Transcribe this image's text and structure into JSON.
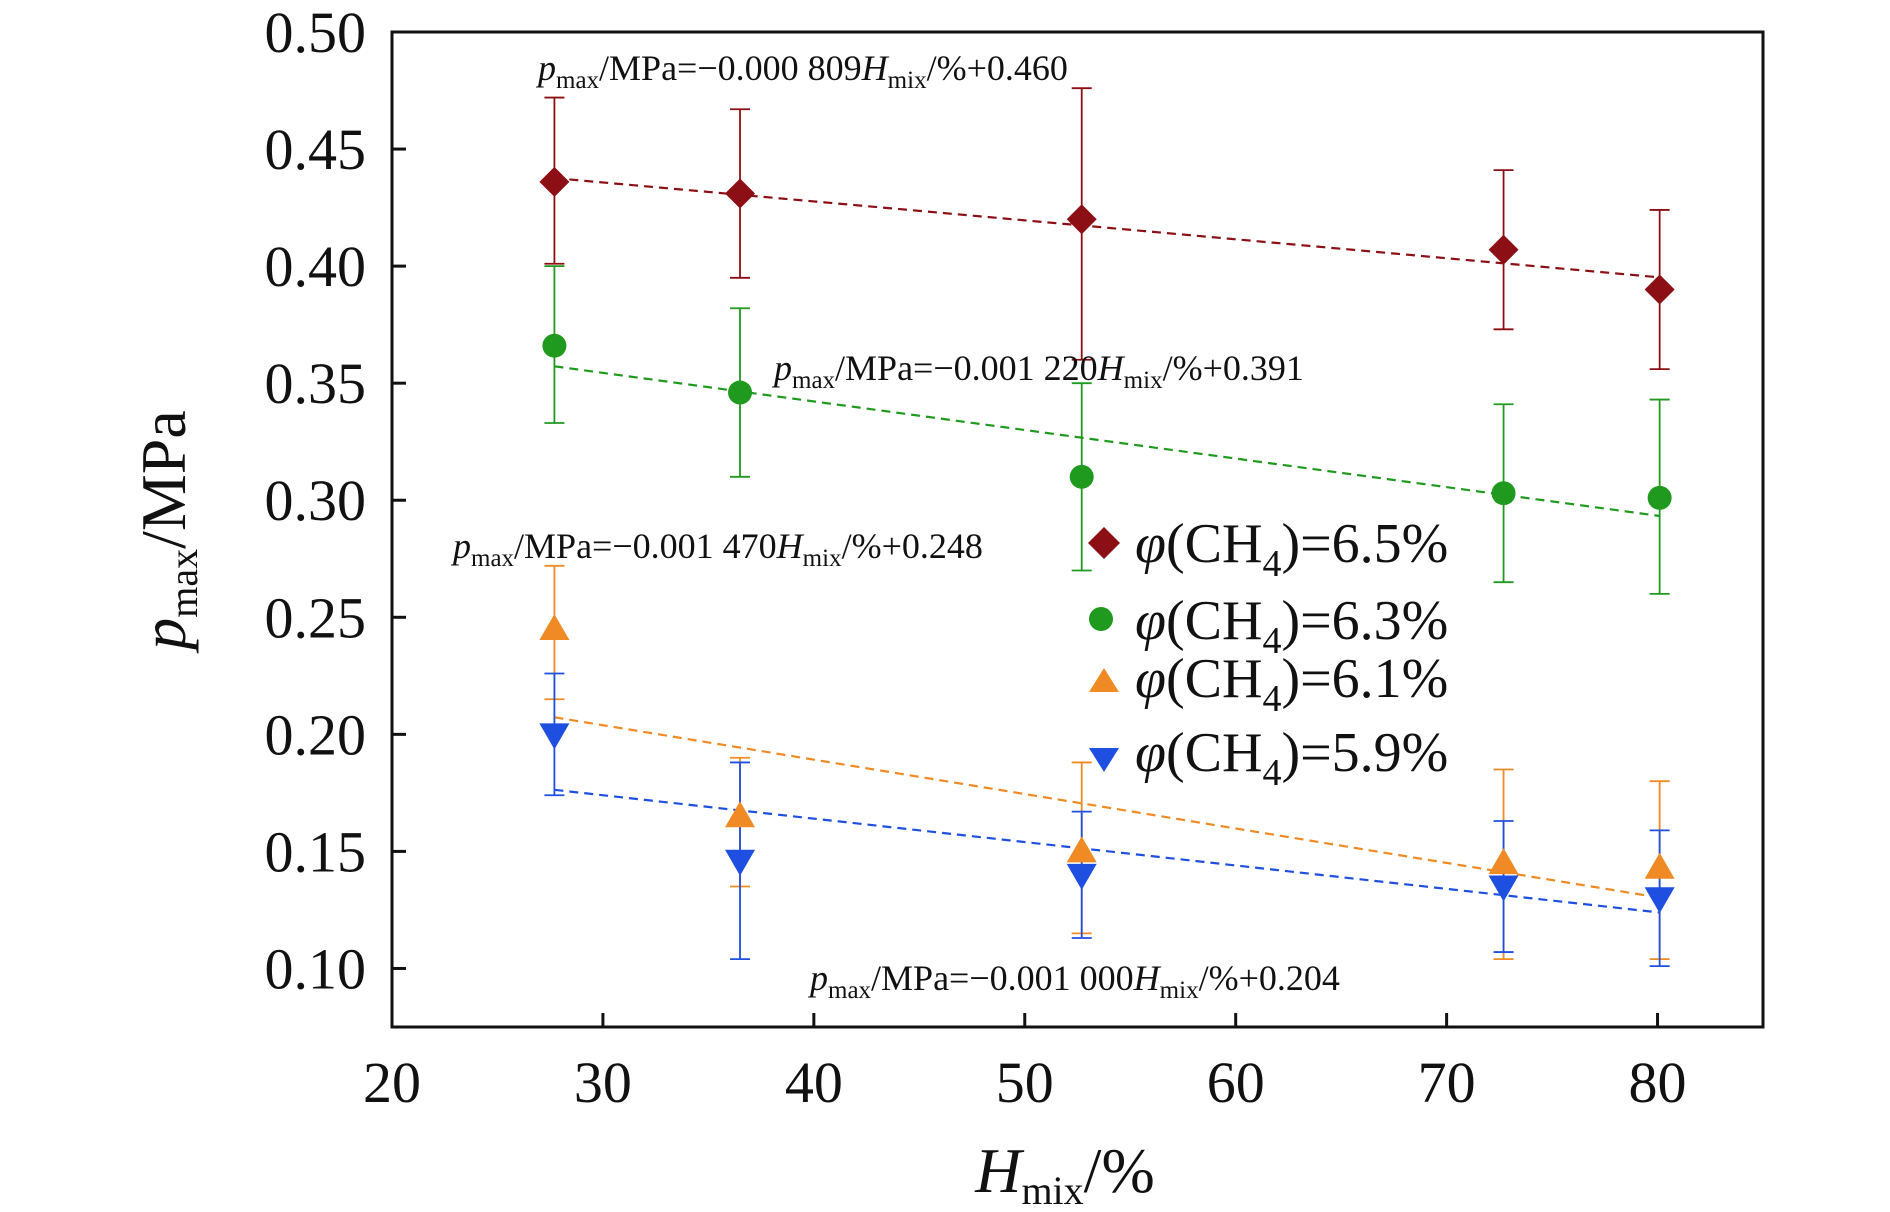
{
  "chart_data": {
    "type": "scatter",
    "x_axis": {
      "label": {
        "main": "H",
        "sub": "mix",
        "suffix": "/%"
      },
      "range": [
        20,
        85
      ],
      "ticks": [
        20,
        30,
        40,
        50,
        60,
        70,
        80
      ],
      "tick_labels": [
        "20",
        "30",
        "40",
        "50",
        "60",
        "70",
        "80"
      ]
    },
    "y_axis": {
      "label": {
        "main": "p",
        "sub": "max",
        "suffix": "/MPa"
      },
      "range": [
        0.075,
        0.5
      ],
      "ticks": [
        0.1,
        0.15,
        0.2,
        0.25,
        0.3,
        0.35,
        0.4,
        0.45,
        0.5
      ],
      "tick_labels": [
        "0.10",
        "0.15",
        "0.20",
        "0.25",
        "0.30",
        "0.35",
        "0.40",
        "0.45",
        "0.50"
      ]
    },
    "grid": false,
    "legend_position": "right-middle",
    "series": [
      {
        "id": "s65",
        "name": "φ(CH4)=6.5%",
        "legend": {
          "pre": "φ",
          "mid": "(CH",
          "sub": "4",
          "post": ")=6.5%"
        },
        "marker": "diamond",
        "color": "#8B0F14",
        "x": [
          27.7,
          36.5,
          52.7,
          72.7,
          80.1
        ],
        "y": [
          0.436,
          0.431,
          0.42,
          0.407,
          0.39
        ],
        "err_low": [
          0.401,
          0.395,
          0.36,
          0.373,
          0.356
        ],
        "err_high": [
          0.472,
          0.467,
          0.476,
          0.441,
          0.424
        ],
        "fit": {
          "slope": -0.000809,
          "intercept": 0.46,
          "x_range": [
            27.7,
            80.1
          ]
        },
        "equation": {
          "p": "p",
          "p_sub": "max",
          "mid": "/MPa=−0.000 809",
          "h": "H",
          "h_sub": "mix",
          "post": "/%+0.460"
        }
      },
      {
        "id": "s63",
        "name": "φ(CH4)=6.3%",
        "legend": {
          "pre": "φ",
          "mid": "(CH",
          "sub": "4",
          "post": ")=6.3%"
        },
        "marker": "circle",
        "color": "#1F9A1F",
        "x": [
          27.7,
          36.5,
          52.7,
          72.7,
          80.1
        ],
        "y": [
          0.366,
          0.346,
          0.31,
          0.303,
          0.301
        ],
        "err_low": [
          0.333,
          0.31,
          0.27,
          0.265,
          0.26
        ],
        "err_high": [
          0.4,
          0.382,
          0.35,
          0.341,
          0.343
        ],
        "fit": {
          "slope": -0.00122,
          "intercept": 0.391,
          "x_range": [
            27.7,
            80.1
          ]
        },
        "equation": {
          "p": "p",
          "p_sub": "max",
          "mid": "/MPa=−0.001 220",
          "h": "H",
          "h_sub": "mix",
          "post": "/%+0.391"
        }
      },
      {
        "id": "s61",
        "name": "φ(CH4)=6.1%",
        "legend": {
          "pre": "φ",
          "mid": "(CH",
          "sub": "4",
          "post": ")=6.1%"
        },
        "marker": "triangle-up",
        "color": "#F08A24",
        "x": [
          27.7,
          36.5,
          52.7,
          72.7,
          80.1
        ],
        "y": [
          0.245,
          0.165,
          0.15,
          0.145,
          0.143
        ],
        "err_low": [
          0.215,
          0.135,
          0.115,
          0.104,
          0.104
        ],
        "err_high": [
          0.272,
          0.19,
          0.188,
          0.185,
          0.18
        ],
        "fit": {
          "slope": -0.00147,
          "intercept": 0.248,
          "x_range": [
            27.7,
            80.1
          ]
        },
        "equation": {
          "p": "p",
          "p_sub": "max",
          "mid": "/MPa=−0.001 470",
          "h": "H",
          "h_sub": "mix",
          "post": "/%+0.248"
        }
      },
      {
        "id": "s59",
        "name": "φ(CH4)=5.9%",
        "legend": {
          "pre": "φ",
          "mid": "(CH",
          "sub": "4",
          "post": ")=5.9%"
        },
        "marker": "triangle-down",
        "color": "#1F4FE0",
        "x": [
          27.7,
          36.5,
          52.7,
          72.7,
          80.1
        ],
        "y": [
          0.2,
          0.146,
          0.14,
          0.135,
          0.13
        ],
        "err_low": [
          0.174,
          0.104,
          0.113,
          0.107,
          0.101
        ],
        "err_high": [
          0.226,
          0.188,
          0.167,
          0.163,
          0.159
        ],
        "fit": {
          "slope": -0.001,
          "intercept": 0.204,
          "x_range": [
            27.7,
            80.1
          ]
        },
        "equation": {
          "p": "p",
          "p_sub": "max",
          "mid": "/MPa=−0.001 000",
          "h": "H",
          "h_sub": "mix",
          "post": "/%+0.204"
        }
      }
    ]
  }
}
